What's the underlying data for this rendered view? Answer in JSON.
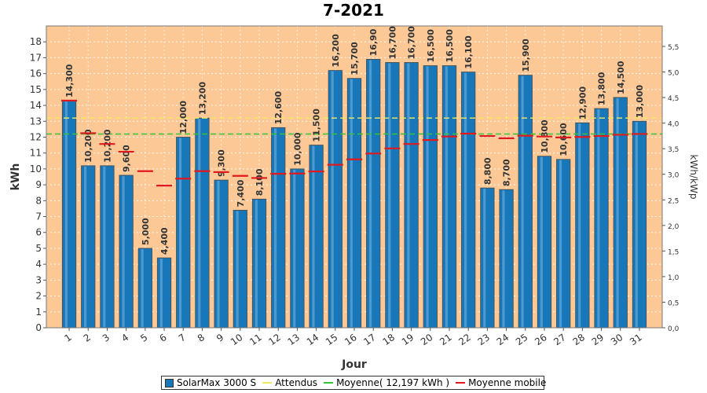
{
  "chart_data": {
    "type": "bar",
    "title": "7-2021",
    "xlabel": "Jour",
    "ylabel_left": "kWh",
    "ylabel_right": "kWh/kWp",
    "ylim_left": [
      0,
      19
    ],
    "yticks_left": [
      "0",
      "1",
      "2",
      "3",
      "4",
      "5",
      "6",
      "7",
      "8",
      "9",
      "10",
      "11",
      "12",
      "13",
      "14",
      "15",
      "16",
      "17",
      "18"
    ],
    "ylim_right": [
      0,
      5.9
    ],
    "yticks_right": [
      "0,0",
      "0,5",
      "1,0",
      "1,5",
      "2,0",
      "2,5",
      "3,0",
      "3,5",
      "4,0",
      "4,5",
      "5,0",
      "5,5"
    ],
    "categories": [
      "1",
      "2",
      "3",
      "4",
      "5",
      "6",
      "7",
      "8",
      "9",
      "10",
      "11",
      "12",
      "13",
      "14",
      "15",
      "16",
      "17",
      "18",
      "19",
      "20",
      "21",
      "22",
      "23",
      "24",
      "25",
      "26",
      "27",
      "28",
      "29",
      "30",
      "31"
    ],
    "series": [
      {
        "name": "SolarMax 3000 S",
        "values": [
          14.3,
          10.2,
          10.2,
          9.6,
          5.0,
          4.4,
          12.0,
          13.2,
          9.3,
          7.4,
          8.1,
          12.6,
          10.0,
          11.5,
          16.2,
          15.7,
          16.9,
          16.7,
          16.7,
          16.5,
          16.5,
          16.1,
          8.8,
          8.7,
          15.9,
          10.8,
          10.6,
          12.9,
          13.8,
          14.5,
          13.0
        ],
        "labels": [
          "14,300",
          "10,200",
          "10,200",
          "9,600",
          "5,000",
          "4,400",
          "12,000",
          "13,200",
          "9,300",
          "7,400",
          "8,100",
          "12,600",
          "10,000",
          "11,500",
          "16,200",
          "15,700",
          "16,90",
          "16,700",
          "16,700",
          "16,500",
          "16,500",
          "16,100",
          "8,800",
          "8,700",
          "15,900",
          "10,800",
          "10,600",
          "12,900",
          "13,800",
          "14,500",
          "13,000"
        ]
      },
      {
        "name": "Attendus",
        "value": 13.2
      },
      {
        "name": "Moyenne( 12,197 kWh )",
        "value": 12.197
      },
      {
        "name": "Moyenne mobile",
        "values": [
          14.3,
          12.25,
          11.57,
          11.08,
          9.86,
          8.95,
          9.39,
          9.86,
          9.8,
          9.56,
          9.43,
          9.69,
          9.71,
          9.84,
          10.26,
          10.6,
          10.97,
          11.29,
          11.57,
          11.82,
          12.04,
          12.22,
          12.07,
          11.93,
          12.09,
          12.04,
          11.98,
          12.01,
          12.07,
          12.15,
          12.2
        ]
      }
    ],
    "colors": {
      "bar": "#1877b8",
      "plot_bg": "#fcc896",
      "attendus": "#f0ea60",
      "moyenne": "#33c43a",
      "moyenne_mobile": "#e0191e"
    },
    "legend_position": "bottom",
    "grid": true
  }
}
